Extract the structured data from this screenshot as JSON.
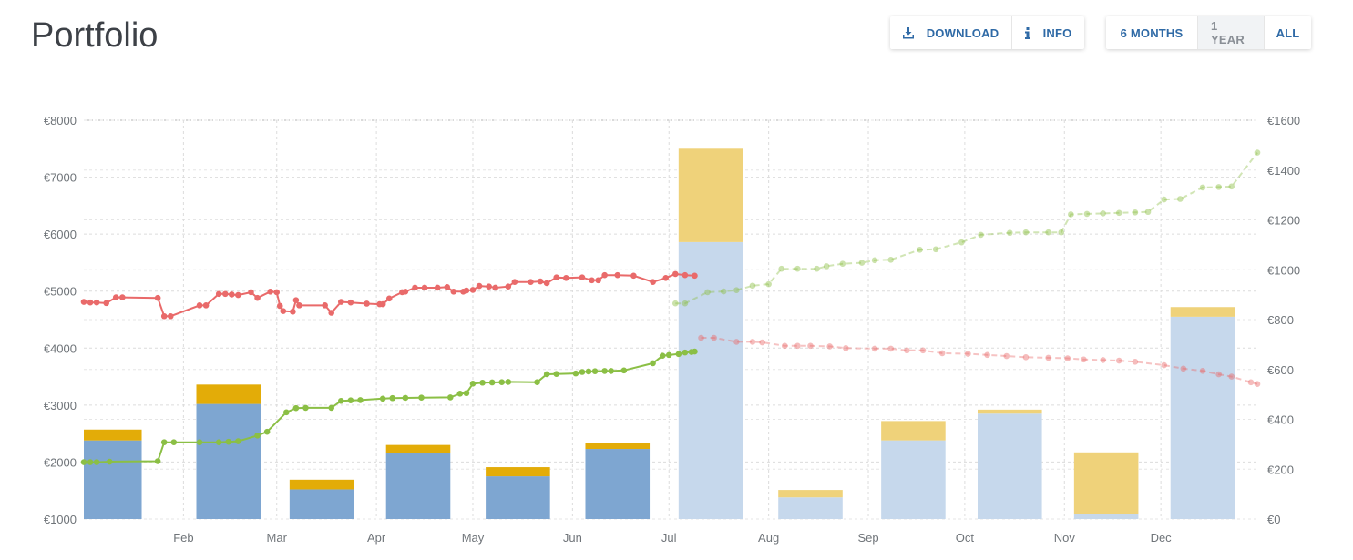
{
  "page": {
    "title": "Portfolio"
  },
  "toolbar": {
    "download_label": "DOWNLOAD",
    "info_label": "INFO",
    "ranges": [
      {
        "label": "6 MONTHS",
        "active": true
      },
      {
        "label": "1 YEAR",
        "active": false
      },
      {
        "label": "ALL",
        "active": true
      }
    ]
  },
  "colors": {
    "bar_base": "#7ea6d1",
    "bar_top": "#e3ac08",
    "bar_base_projected": "#c6d8ec",
    "bar_top_projected": "#efd27a",
    "green": "#8bbf45",
    "red": "#e96a6a",
    "accent": "#2f6aa6"
  },
  "chart_data": {
    "type": "bar",
    "left_axis": {
      "ylim": [
        1000,
        8000
      ],
      "ticks": [
        1000,
        2000,
        3000,
        4000,
        5000,
        6000,
        7000,
        8000
      ],
      "prefix": "€"
    },
    "right_axis": {
      "ylim": [
        0,
        1600
      ],
      "ticks": [
        0,
        200,
        400,
        600,
        800,
        1000,
        1200,
        1400,
        1600
      ],
      "prefix": "€"
    },
    "x_range": [
      "2020-01-01",
      "2020-12-31"
    ],
    "x_ticks": [
      {
        "date": "2020-02-01",
        "label": "Feb"
      },
      {
        "date": "2020-03-01",
        "label": "Mar"
      },
      {
        "date": "2020-04-01",
        "label": "Apr"
      },
      {
        "date": "2020-05-01",
        "label": "May"
      },
      {
        "date": "2020-06-01",
        "label": "Jun"
      },
      {
        "date": "2020-07-01",
        "label": "Jul"
      },
      {
        "date": "2020-08-01",
        "label": "Aug"
      },
      {
        "date": "2020-09-01",
        "label": "Sep"
      },
      {
        "date": "2020-10-01",
        "label": "Oct"
      },
      {
        "date": "2020-11-01",
        "label": "Nov"
      },
      {
        "date": "2020-12-01",
        "label": "Dec"
      }
    ],
    "bars": [
      {
        "start": "2020-01-01",
        "end": "2020-01-19",
        "base": 2380,
        "top": 2570,
        "projected": false
      },
      {
        "start": "2020-02-05",
        "end": "2020-02-25",
        "base": 3020,
        "top": 3360,
        "projected": false
      },
      {
        "start": "2020-03-05",
        "end": "2020-03-25",
        "base": 1520,
        "top": 1690,
        "projected": false
      },
      {
        "start": "2020-04-04",
        "end": "2020-04-24",
        "base": 2160,
        "top": 2300,
        "projected": false
      },
      {
        "start": "2020-05-05",
        "end": "2020-05-25",
        "base": 1750,
        "top": 1910,
        "projected": false
      },
      {
        "start": "2020-06-05",
        "end": "2020-06-25",
        "base": 2230,
        "top": 2330,
        "projected": false
      },
      {
        "start": "2020-07-04",
        "end": "2020-07-24",
        "base": 5860,
        "top": 7500,
        "projected": true
      },
      {
        "start": "2020-08-04",
        "end": "2020-08-24",
        "base": 1380,
        "top": 1510,
        "projected": true
      },
      {
        "start": "2020-09-05",
        "end": "2020-09-25",
        "base": 2380,
        "top": 2720,
        "projected": true
      },
      {
        "start": "2020-10-05",
        "end": "2020-10-25",
        "base": 2850,
        "top": 2920,
        "projected": true
      },
      {
        "start": "2020-11-04",
        "end": "2020-11-24",
        "base": 1090,
        "top": 2170,
        "projected": true
      },
      {
        "start": "2020-12-04",
        "end": "2020-12-24",
        "base": 4550,
        "top": 4720,
        "projected": true
      }
    ],
    "series": [
      {
        "axis": "left",
        "color": "red",
        "actual": [
          [
            "2020-01-01",
            4810
          ],
          [
            "2020-01-03",
            4800
          ],
          [
            "2020-01-05",
            4800
          ],
          [
            "2020-01-08",
            4790
          ],
          [
            "2020-01-11",
            4890
          ],
          [
            "2020-01-13",
            4890
          ],
          [
            "2020-01-24",
            4880
          ],
          [
            "2020-01-26",
            4560
          ],
          [
            "2020-01-28",
            4560
          ],
          [
            "2020-02-06",
            4750
          ],
          [
            "2020-02-08",
            4750
          ],
          [
            "2020-02-12",
            4950
          ],
          [
            "2020-02-14",
            4950
          ],
          [
            "2020-02-16",
            4940
          ],
          [
            "2020-02-18",
            4930
          ],
          [
            "2020-02-22",
            4980
          ],
          [
            "2020-02-24",
            4880
          ],
          [
            "2020-02-28",
            4990
          ],
          [
            "2020-03-01",
            4980
          ],
          [
            "2020-03-02",
            4740
          ],
          [
            "2020-03-03",
            4650
          ],
          [
            "2020-03-06",
            4640
          ],
          [
            "2020-03-07",
            4840
          ],
          [
            "2020-03-08",
            4750
          ],
          [
            "2020-03-16",
            4750
          ],
          [
            "2020-03-18",
            4620
          ],
          [
            "2020-03-21",
            4810
          ],
          [
            "2020-03-24",
            4800
          ],
          [
            "2020-03-29",
            4780
          ],
          [
            "2020-04-02",
            4770
          ],
          [
            "2020-04-03",
            4770
          ],
          [
            "2020-04-05",
            4870
          ],
          [
            "2020-04-09",
            4980
          ],
          [
            "2020-04-10",
            4990
          ],
          [
            "2020-04-13",
            5060
          ],
          [
            "2020-04-16",
            5060
          ],
          [
            "2020-04-20",
            5060
          ],
          [
            "2020-04-23",
            5070
          ],
          [
            "2020-04-25",
            4990
          ],
          [
            "2020-04-28",
            4990
          ],
          [
            "2020-04-29",
            5010
          ],
          [
            "2020-05-01",
            5020
          ],
          [
            "2020-05-03",
            5090
          ],
          [
            "2020-05-06",
            5080
          ],
          [
            "2020-05-08",
            5060
          ],
          [
            "2020-05-12",
            5080
          ],
          [
            "2020-05-14",
            5160
          ],
          [
            "2020-05-19",
            5160
          ],
          [
            "2020-05-22",
            5170
          ],
          [
            "2020-05-24",
            5140
          ],
          [
            "2020-05-27",
            5240
          ],
          [
            "2020-05-30",
            5230
          ],
          [
            "2020-06-04",
            5240
          ],
          [
            "2020-06-07",
            5190
          ],
          [
            "2020-06-09",
            5190
          ],
          [
            "2020-06-11",
            5280
          ],
          [
            "2020-06-15",
            5280
          ],
          [
            "2020-06-20",
            5270
          ],
          [
            "2020-06-26",
            5160
          ],
          [
            "2020-06-30",
            5230
          ],
          [
            "2020-07-03",
            5300
          ],
          [
            "2020-07-06",
            5280
          ],
          [
            "2020-07-09",
            5270
          ]
        ],
        "projected": [
          [
            "2020-07-11",
            4180
          ],
          [
            "2020-07-15",
            4180
          ],
          [
            "2020-07-22",
            4110
          ],
          [
            "2020-07-27",
            4110
          ],
          [
            "2020-07-30",
            4100
          ],
          [
            "2020-08-06",
            4040
          ],
          [
            "2020-08-10",
            4040
          ],
          [
            "2020-08-14",
            4040
          ],
          [
            "2020-08-20",
            4030
          ],
          [
            "2020-08-25",
            4000
          ],
          [
            "2020-09-03",
            3990
          ],
          [
            "2020-09-08",
            3990
          ],
          [
            "2020-09-13",
            3960
          ],
          [
            "2020-09-18",
            3960
          ],
          [
            "2020-09-24",
            3910
          ],
          [
            "2020-10-02",
            3900
          ],
          [
            "2020-10-08",
            3880
          ],
          [
            "2020-10-14",
            3860
          ],
          [
            "2020-10-20",
            3840
          ],
          [
            "2020-10-27",
            3830
          ],
          [
            "2020-11-02",
            3820
          ],
          [
            "2020-11-07",
            3800
          ],
          [
            "2020-11-13",
            3790
          ],
          [
            "2020-11-18",
            3780
          ],
          [
            "2020-11-23",
            3760
          ],
          [
            "2020-12-02",
            3700
          ],
          [
            "2020-12-08",
            3640
          ],
          [
            "2020-12-14",
            3600
          ],
          [
            "2020-12-19",
            3540
          ],
          [
            "2020-12-23",
            3500
          ],
          [
            "2020-12-29",
            3400
          ],
          [
            "2020-12-31",
            3370
          ]
        ]
      },
      {
        "axis": "right",
        "color": "green",
        "actual": [
          [
            "2020-01-01",
            228
          ],
          [
            "2020-01-03",
            228
          ],
          [
            "2020-01-05",
            228
          ],
          [
            "2020-01-09",
            230
          ],
          [
            "2020-01-24",
            232
          ],
          [
            "2020-01-26",
            308
          ],
          [
            "2020-01-29",
            308
          ],
          [
            "2020-02-06",
            308
          ],
          [
            "2020-02-12",
            308
          ],
          [
            "2020-02-15",
            310
          ],
          [
            "2020-02-18",
            312
          ],
          [
            "2020-02-24",
            335
          ],
          [
            "2020-02-27",
            350
          ],
          [
            "2020-03-04",
            428
          ],
          [
            "2020-03-07",
            445
          ],
          [
            "2020-03-10",
            446
          ],
          [
            "2020-03-18",
            446
          ],
          [
            "2020-03-21",
            474
          ],
          [
            "2020-03-24",
            476
          ],
          [
            "2020-03-27",
            477
          ],
          [
            "2020-04-03",
            483
          ],
          [
            "2020-04-06",
            485
          ],
          [
            "2020-04-10",
            486
          ],
          [
            "2020-04-15",
            487
          ],
          [
            "2020-04-24",
            488
          ],
          [
            "2020-04-27",
            503
          ],
          [
            "2020-04-29",
            505
          ],
          [
            "2020-05-01",
            543
          ],
          [
            "2020-05-04",
            547
          ],
          [
            "2020-05-07",
            548
          ],
          [
            "2020-05-10",
            549
          ],
          [
            "2020-05-12",
            550
          ],
          [
            "2020-05-21",
            549
          ],
          [
            "2020-05-24",
            581
          ],
          [
            "2020-05-27",
            582
          ],
          [
            "2020-06-02",
            584
          ],
          [
            "2020-06-04",
            590
          ],
          [
            "2020-06-06",
            592
          ],
          [
            "2020-06-08",
            593
          ],
          [
            "2020-06-11",
            594
          ],
          [
            "2020-06-13",
            594
          ],
          [
            "2020-06-17",
            596
          ],
          [
            "2020-06-26",
            625
          ],
          [
            "2020-06-29",
            655
          ],
          [
            "2020-07-01",
            658
          ],
          [
            "2020-07-04",
            662
          ],
          [
            "2020-07-06",
            668
          ],
          [
            "2020-07-08",
            670
          ],
          [
            "2020-07-09",
            672
          ]
        ],
        "projected": [
          [
            "2020-07-03",
            865
          ],
          [
            "2020-07-06",
            865
          ],
          [
            "2020-07-13",
            910
          ],
          [
            "2020-07-18",
            913
          ],
          [
            "2020-07-22",
            918
          ],
          [
            "2020-07-27",
            936
          ],
          [
            "2020-08-01",
            942
          ],
          [
            "2020-08-05",
            1004
          ],
          [
            "2020-08-10",
            1004
          ],
          [
            "2020-08-16",
            1004
          ],
          [
            "2020-08-19",
            1014
          ],
          [
            "2020-08-24",
            1024
          ],
          [
            "2020-08-30",
            1028
          ],
          [
            "2020-09-03",
            1038
          ],
          [
            "2020-09-08",
            1040
          ],
          [
            "2020-09-17",
            1080
          ],
          [
            "2020-09-22",
            1082
          ],
          [
            "2020-09-30",
            1110
          ],
          [
            "2020-10-06",
            1140
          ],
          [
            "2020-10-15",
            1148
          ],
          [
            "2020-10-20",
            1150
          ],
          [
            "2020-10-27",
            1150
          ],
          [
            "2020-10-31",
            1150
          ],
          [
            "2020-11-03",
            1222
          ],
          [
            "2020-11-08",
            1224
          ],
          [
            "2020-11-13",
            1226
          ],
          [
            "2020-11-18",
            1228
          ],
          [
            "2020-11-23",
            1230
          ],
          [
            "2020-11-27",
            1232
          ],
          [
            "2020-12-02",
            1282
          ],
          [
            "2020-12-07",
            1284
          ],
          [
            "2020-12-14",
            1330
          ],
          [
            "2020-12-19",
            1332
          ],
          [
            "2020-12-23",
            1334
          ],
          [
            "2020-12-31",
            1470
          ]
        ]
      }
    ]
  }
}
